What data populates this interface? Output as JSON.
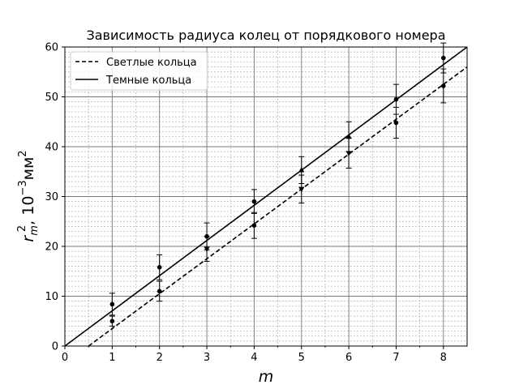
{
  "chart_data": {
    "type": "scatter",
    "title": "Зависимость радиуса колец от порядкового номера",
    "xlabel": "m",
    "ylabel_main": "r",
    "ylabel_sub": "m",
    "ylabel_sup": "2",
    "ylabel_rest": ", 10",
    "ylabel_exp": "−3",
    "ylabel_unit": "мм",
    "ylabel_unit_sup": "2",
    "xlim": [
      0,
      8.5
    ],
    "ylim": [
      0,
      60
    ],
    "x_ticks": [
      "0",
      "1",
      "2",
      "3",
      "4",
      "5",
      "6",
      "7",
      "8"
    ],
    "y_ticks": [
      "0",
      "10",
      "20",
      "30",
      "40",
      "50",
      "60"
    ],
    "grid": "major and minor",
    "legend_position": "top-left",
    "series": [
      {
        "name": "Светлые кольца",
        "line_style": "dashed",
        "fit_line": [
          [
            0.5,
            0
          ],
          [
            8.5,
            56
          ]
        ],
        "points": [
          {
            "x": 1,
            "y": 5.0,
            "err": 1.0,
            "marker": "circle"
          },
          {
            "x": 2,
            "y": 11.0,
            "err": 2.0,
            "marker": "circle"
          },
          {
            "x": 3,
            "y": 19.5,
            "err": 2.5,
            "marker": "down-triangle"
          },
          {
            "x": 4,
            "y": 24.2,
            "err": 2.6,
            "marker": "circle"
          },
          {
            "x": 5,
            "y": 31.5,
            "err": 2.8,
            "marker": "down-triangle"
          },
          {
            "x": 6,
            "y": 38.7,
            "err": 3.0,
            "marker": "down-triangle"
          },
          {
            "x": 7,
            "y": 44.8,
            "err": 3.1,
            "marker": "circle"
          },
          {
            "x": 8,
            "y": 52.2,
            "err": 3.4,
            "marker": "circle"
          }
        ]
      },
      {
        "name": "Темные кольца",
        "line_style": "solid",
        "fit_line": [
          [
            0,
            0
          ],
          [
            8.5,
            60
          ]
        ],
        "points": [
          {
            "x": 1,
            "y": 8.4,
            "err": 2.2,
            "marker": "circle"
          },
          {
            "x": 2,
            "y": 15.8,
            "err": 2.5,
            "marker": "circle"
          },
          {
            "x": 3,
            "y": 22.0,
            "err": 2.7,
            "marker": "circle"
          },
          {
            "x": 4,
            "y": 29.0,
            "err": 2.4,
            "marker": "circle"
          },
          {
            "x": 5,
            "y": 35.3,
            "err": 2.7,
            "marker": "up-triangle"
          },
          {
            "x": 6,
            "y": 42.0,
            "err": 3.0,
            "marker": "up-triangle"
          },
          {
            "x": 7,
            "y": 49.5,
            "err": 3.0,
            "marker": "circle"
          },
          {
            "x": 8,
            "y": 57.8,
            "err": 3.0,
            "marker": "circle"
          }
        ]
      }
    ]
  }
}
